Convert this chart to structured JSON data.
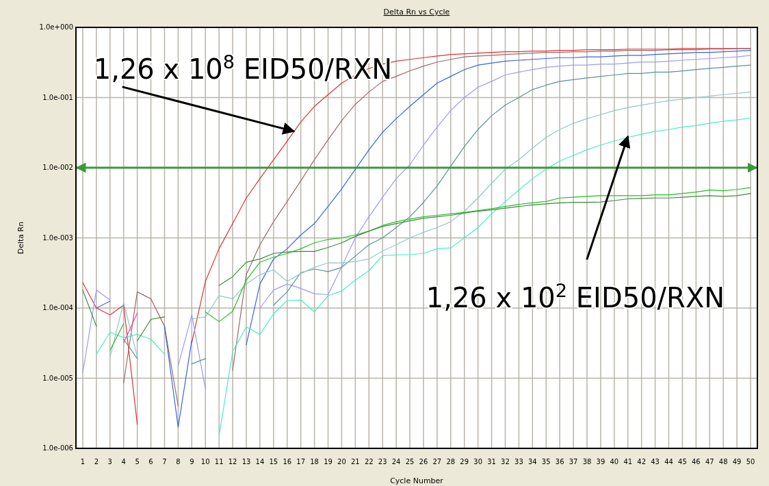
{
  "chart_data": {
    "type": "line",
    "title": "Delta Rn vs Cycle",
    "xlabel": "Cycle Number",
    "ylabel": "Delta Rn",
    "log": "y",
    "grid": true,
    "xlim": [
      0.5,
      50.5
    ],
    "xticks": [
      1,
      2,
      3,
      4,
      5,
      6,
      7,
      8,
      9,
      10,
      11,
      12,
      13,
      14,
      15,
      16,
      17,
      18,
      19,
      20,
      21,
      22,
      23,
      24,
      25,
      26,
      27,
      28,
      29,
      30,
      31,
      32,
      33,
      34,
      35,
      36,
      37,
      38,
      39,
      40,
      41,
      42,
      43,
      44,
      45,
      46,
      47,
      48,
      49,
      50
    ],
    "ylim": [
      1e-06,
      1
    ],
    "yticks": [
      {
        "value": 1e-06,
        "label": "1.0e-006"
      },
      {
        "value": 1e-05,
        "label": "1.0e-005"
      },
      {
        "value": 0.0001,
        "label": "1.0e-004"
      },
      {
        "value": 0.001,
        "label": "1.0e-003"
      },
      {
        "value": 0.01,
        "label": "1.0e-002"
      },
      {
        "value": 0.1,
        "label": "1.0e-001"
      },
      {
        "value": 1,
        "label": "1.0e+000"
      }
    ],
    "x": [
      1,
      2,
      3,
      4,
      5,
      6,
      7,
      8,
      9,
      10,
      11,
      12,
      13,
      14,
      15,
      16,
      17,
      18,
      19,
      20,
      21,
      22,
      23,
      24,
      25,
      26,
      27,
      28,
      29,
      30,
      31,
      32,
      33,
      34,
      35,
      36,
      37,
      38,
      39,
      40,
      41,
      42,
      43,
      44,
      45,
      46,
      47,
      48,
      49,
      50
    ],
    "series": [
      {
        "color": "#e03030",
        "values": [
          0.00023,
          0.0001,
          8e-05,
          0.00011,
          2.2e-06,
          null,
          null,
          null,
          3.2e-05,
          0.00024,
          0.0007,
          0.0016,
          0.0037,
          0.007,
          0.013,
          0.024,
          0.045,
          0.075,
          0.11,
          0.16,
          0.21,
          0.26,
          0.3,
          0.33,
          0.35,
          0.37,
          0.39,
          0.41,
          0.42,
          0.43,
          0.44,
          0.45,
          0.45,
          0.46,
          0.46,
          0.47,
          0.47,
          0.48,
          0.48,
          0.48,
          0.49,
          0.49,
          0.49,
          0.49,
          0.5,
          0.5,
          0.5,
          0.5,
          0.5,
          0.5
        ]
      },
      {
        "color": "#a06868",
        "values": [
          null,
          null,
          null,
          8.5e-06,
          0.00017,
          0.000135,
          5.5e-05,
          4e-06,
          null,
          null,
          null,
          1.3e-05,
          0.0003,
          0.0008,
          0.0017,
          0.0033,
          0.0065,
          0.013,
          0.025,
          0.047,
          0.08,
          0.12,
          0.17,
          0.2,
          0.24,
          0.28,
          0.32,
          0.35,
          0.38,
          0.39,
          0.4,
          0.41,
          0.42,
          0.43,
          0.44,
          0.44,
          0.45,
          0.45,
          0.46,
          0.46,
          0.47,
          0.47,
          0.47,
          0.48,
          0.48,
          0.48,
          0.49,
          0.49,
          0.5,
          0.5
        ]
      },
      {
        "color": "#3a66d8",
        "values": [
          null,
          0.0001,
          0.000125,
          null,
          null,
          null,
          5.5e-05,
          2e-06,
          3.5e-05,
          null,
          null,
          null,
          3e-05,
          0.00022,
          0.0005,
          0.0007,
          0.0011,
          0.0016,
          0.0028,
          0.005,
          0.0095,
          0.018,
          0.032,
          0.05,
          0.075,
          0.11,
          0.16,
          0.2,
          0.25,
          0.29,
          0.31,
          0.33,
          0.34,
          0.35,
          0.36,
          0.37,
          0.37,
          0.38,
          0.38,
          0.39,
          0.4,
          0.4,
          0.41,
          0.42,
          0.43,
          0.44,
          0.44,
          0.45,
          0.46,
          0.47
        ]
      },
      {
        "color": "#9a9aff",
        "values": [
          1.2e-05,
          0.00018,
          0.00013,
          null,
          null,
          null,
          null,
          1.5e-05,
          8e-05,
          7e-06,
          null,
          null,
          null,
          0.0001,
          0.00018,
          0.00022,
          0.00019,
          0.00016,
          0.000155,
          0.00039,
          0.001,
          0.002,
          0.0038,
          0.007,
          0.011,
          0.021,
          0.038,
          0.065,
          0.1,
          0.14,
          0.17,
          0.21,
          0.23,
          0.25,
          0.27,
          0.28,
          0.29,
          0.29,
          0.3,
          0.3,
          0.31,
          0.32,
          0.32,
          0.33,
          0.34,
          0.35,
          0.36,
          0.37,
          0.38,
          0.4
        ]
      },
      {
        "color": "#5a9494",
        "values": [
          null,
          null,
          null,
          3.6e-05,
          1.9e-05,
          null,
          null,
          null,
          1.6e-05,
          1.9e-05,
          null,
          null,
          null,
          null,
          0.00011,
          0.00017,
          0.00032,
          0.00036,
          0.00033,
          0.00038,
          0.00055,
          0.0008,
          0.001,
          0.0014,
          0.002,
          0.0032,
          0.0055,
          0.0105,
          0.02,
          0.035,
          0.055,
          0.078,
          0.1,
          0.13,
          0.15,
          0.17,
          0.18,
          0.19,
          0.2,
          0.21,
          0.22,
          0.22,
          0.23,
          0.23,
          0.24,
          0.25,
          0.26,
          0.27,
          0.28,
          0.29
        ]
      },
      {
        "color": "#90c8c8",
        "values": [
          null,
          null,
          2e-05,
          0.00012,
          2e-05,
          null,
          null,
          null,
          7e-05,
          7.5e-05,
          0.00015,
          0.000135,
          0.00022,
          0.0003,
          0.00035,
          0.00024,
          0.00031,
          0.00038,
          0.00044,
          0.00044,
          0.00046,
          0.0005,
          0.00065,
          0.0008,
          0.001,
          0.0012,
          0.0014,
          0.0017,
          0.0024,
          0.0037,
          0.006,
          0.0095,
          0.013,
          0.019,
          0.027,
          0.035,
          0.043,
          0.05,
          0.057,
          0.065,
          0.072,
          0.078,
          0.084,
          0.09,
          0.095,
          0.1,
          0.105,
          0.11,
          0.115,
          0.12
        ]
      },
      {
        "color": "#40f0c8",
        "values": [
          null,
          2.2e-05,
          4.5e-05,
          3.8e-05,
          4.2e-05,
          3.6e-05,
          2.2e-05,
          null,
          null,
          null,
          1.5e-06,
          2.4e-05,
          5.4e-05,
          4.2e-05,
          8.3e-05,
          0.000128,
          0.00013,
          8.8e-05,
          0.00015,
          0.000175,
          0.00025,
          0.00034,
          0.00056,
          0.00057,
          0.00058,
          0.0006,
          0.0007,
          0.00072,
          0.001,
          0.0014,
          0.0022,
          0.0033,
          0.0048,
          0.007,
          0.0095,
          0.0125,
          0.015,
          0.018,
          0.021,
          0.024,
          0.027,
          0.03,
          0.033,
          0.035,
          0.038,
          0.04,
          0.043,
          0.046,
          0.048,
          0.051
        ]
      },
      {
        "color": "#22c022",
        "values": [
          null,
          null,
          2.5e-05,
          6e-05,
          null,
          null,
          null,
          null,
          null,
          8.8e-05,
          6.4e-05,
          9e-05,
          0.00025,
          0.00045,
          0.00053,
          0.0006,
          0.0007,
          0.00085,
          0.00095,
          0.001,
          0.0011,
          0.00125,
          0.0015,
          0.0017,
          0.00185,
          0.002,
          0.0021,
          0.0022,
          0.0023,
          0.00245,
          0.0026,
          0.0028,
          0.003,
          0.00315,
          0.0033,
          0.0037,
          0.0038,
          0.0039,
          0.004,
          0.004,
          0.004,
          0.004,
          0.0041,
          0.0041,
          0.0043,
          0.0045,
          0.0048,
          0.0047,
          0.0049,
          0.0052
        ]
      },
      {
        "color": "#3c8a3c",
        "values": [
          0.00018,
          5.5e-05,
          null,
          null,
          3.4e-05,
          6.9e-05,
          7.5e-05,
          null,
          null,
          null,
          0.00021,
          0.00028,
          0.00045,
          0.0005,
          0.0006,
          0.00063,
          0.00064,
          0.00064,
          0.00073,
          0.00085,
          0.00105,
          0.00125,
          0.00145,
          0.0016,
          0.00175,
          0.0019,
          0.002,
          0.0021,
          0.00225,
          0.0024,
          0.0025,
          0.00265,
          0.0028,
          0.00295,
          0.00305,
          0.00315,
          0.0032,
          0.0032,
          0.00325,
          0.0034,
          0.0036,
          0.00365,
          0.0037,
          0.0037,
          0.0038,
          0.0039,
          0.004,
          0.0039,
          0.004,
          0.0043
        ]
      },
      {
        "color": "#ff40a8",
        "x": [
          4,
          5
        ],
        "values": [
          3.2e-05,
          8.5e-05
        ]
      }
    ],
    "ref_lines": [
      {
        "axis": "y",
        "value": 0.01,
        "color": "#3a9a3a"
      }
    ],
    "annotations": [
      {
        "text": "1,26 x 10$^{8}$ EID50/RXN",
        "x": 16.5,
        "y": 0.033
      },
      {
        "text": "1,26 x 10$^{2}$ EID50/RXN",
        "x": 41,
        "y": 0.028
      }
    ]
  }
}
